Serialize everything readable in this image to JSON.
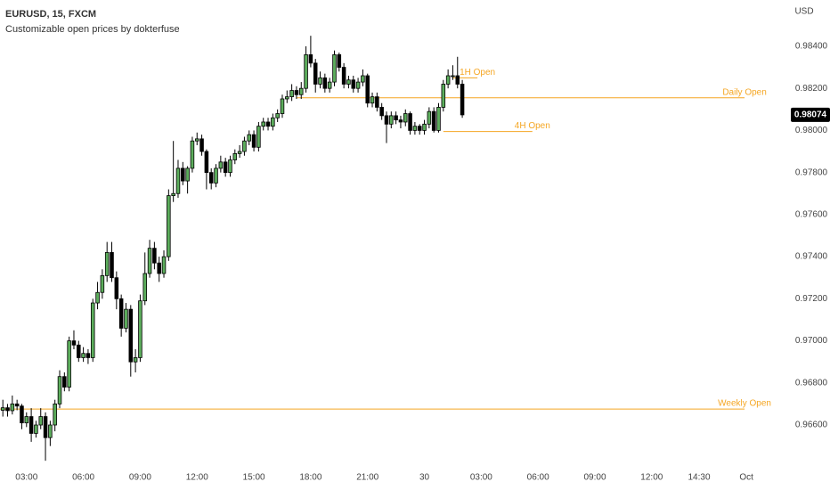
{
  "chart_data": {
    "type": "candlestick",
    "title": "EURUSD, 15, FXCM",
    "subtitle": "Customizable open prices by dokterfuse",
    "currency_label": "USD",
    "up_color": "#5cad5c",
    "down_color": "#000000",
    "wick_color": "#000000",
    "x": [
      1.75,
      2,
      2.25,
      2.5,
      2.75,
      3,
      3.25,
      3.5,
      3.75,
      4,
      4.25,
      4.5,
      4.75,
      5,
      5.25,
      5.5,
      5.75,
      6,
      6.25,
      6.5,
      6.75,
      7,
      7.25,
      7.5,
      7.75,
      8,
      8.25,
      8.5,
      8.75,
      9,
      9.25,
      9.5,
      9.75,
      10,
      10.25,
      10.5,
      10.75,
      11,
      11.25,
      11.5,
      11.75,
      12,
      12.25,
      12.5,
      12.75,
      13,
      13.25,
      13.5,
      13.75,
      14,
      14.25,
      14.5,
      14.75,
      15,
      15.25,
      15.5,
      15.75,
      16,
      16.25,
      16.5,
      16.75,
      17,
      17.25,
      17.5,
      17.75,
      18,
      18.25,
      18.5,
      18.75,
      19,
      19.25,
      19.5,
      19.75,
      20,
      20.25,
      20.5,
      20.75,
      21,
      21.25,
      21.5,
      21.75,
      22,
      22.25,
      22.5,
      22.75,
      23,
      23.25,
      23.5,
      23.75,
      24,
      24.25,
      24.5,
      24.75,
      25,
      25.25,
      25.5,
      25.75,
      26
    ],
    "open": [
      0.9667,
      0.96682,
      0.96668,
      0.967,
      0.9669,
      0.9661,
      0.9664,
      0.9656,
      0.966,
      0.9664,
      0.9654,
      0.966,
      0.967,
      0.9683,
      0.9678,
      0.97,
      0.9698,
      0.9692,
      0.9694,
      0.9692,
      0.9718,
      0.9723,
      0.9731,
      0.9742,
      0.973,
      0.972,
      0.9706,
      0.9715,
      0.969,
      0.9692,
      0.9719,
      0.9732,
      0.9744,
      0.9737,
      0.9732,
      0.974,
      0.9769,
      0.977,
      0.9782,
      0.9776,
      0.9782,
      0.9795,
      0.9796,
      0.979,
      0.978,
      0.9775,
      0.9782,
      0.9785,
      0.978,
      0.9786,
      0.9789,
      0.979,
      0.9795,
      0.9798,
      0.9792,
      0.9802,
      0.9804,
      0.9802,
      0.9806,
      0.9808,
      0.9815,
      0.9816,
      0.9819,
      0.9817,
      0.982,
      0.9836,
      0.9832,
      0.9822,
      0.9825,
      0.982,
      0.9823,
      0.9836,
      0.983,
      0.9822,
      0.9824,
      0.982,
      0.9823,
      0.9826,
      0.9813,
      0.9816,
      0.9811,
      0.9807,
      0.9803,
      0.9807,
      0.9805,
      0.9804,
      0.9808,
      0.98,
      0.9802,
      0.98,
      0.9803,
      0.9809,
      0.98,
      0.9811,
      0.9822,
      0.9826,
      0.9826,
      0.9822
    ],
    "high": [
      0.9672,
      0.967,
      0.9674,
      0.9672,
      0.967,
      0.9666,
      0.9668,
      0.9662,
      0.9668,
      0.9666,
      0.9662,
      0.9672,
      0.9686,
      0.9685,
      0.9702,
      0.9705,
      0.97,
      0.9697,
      0.9696,
      0.972,
      0.9728,
      0.9734,
      0.9747,
      0.9747,
      0.9733,
      0.9722,
      0.9718,
      0.9717,
      0.9696,
      0.9722,
      0.9742,
      0.9748,
      0.9747,
      0.974,
      0.9743,
      0.9772,
      0.9795,
      0.9786,
      0.9785,
      0.9783,
      0.9797,
      0.9799,
      0.9798,
      0.9791,
      0.9782,
      0.9784,
      0.9788,
      0.9787,
      0.9788,
      0.9791,
      0.9793,
      0.9797,
      0.98,
      0.98,
      0.9804,
      0.9806,
      0.9806,
      0.9808,
      0.981,
      0.9817,
      0.9819,
      0.9822,
      0.9821,
      0.9823,
      0.984,
      0.9845,
      0.9834,
      0.9828,
      0.9827,
      0.9825,
      0.9838,
      0.9837,
      0.9832,
      0.9826,
      0.9826,
      0.9825,
      0.9829,
      0.9827,
      0.9818,
      0.9818,
      0.9813,
      0.9809,
      0.9809,
      0.9809,
      0.9807,
      0.981,
      0.9809,
      0.9804,
      0.9803,
      0.9805,
      0.9811,
      0.9811,
      0.9813,
      0.9824,
      0.9829,
      0.9831,
      0.9835,
      0.9824
    ],
    "low": [
      0.9664,
      0.9664,
      0.9665,
      0.9667,
      0.9658,
      0.9659,
      0.9652,
      0.9654,
      0.9658,
      0.9643,
      0.965,
      0.9657,
      0.9668,
      0.9676,
      0.9676,
      0.9696,
      0.969,
      0.969,
      0.9689,
      0.969,
      0.9715,
      0.972,
      0.9728,
      0.9728,
      0.9715,
      0.9702,
      0.9704,
      0.9683,
      0.9685,
      0.969,
      0.9717,
      0.973,
      0.9734,
      0.9728,
      0.973,
      0.9738,
      0.9766,
      0.9768,
      0.9774,
      0.977,
      0.978,
      0.9793,
      0.9788,
      0.9772,
      0.9772,
      0.9773,
      0.978,
      0.9778,
      0.9778,
      0.9784,
      0.9787,
      0.9788,
      0.9793,
      0.979,
      0.979,
      0.98,
      0.98,
      0.98,
      0.9804,
      0.9806,
      0.9813,
      0.9814,
      0.9815,
      0.9815,
      0.9818,
      0.983,
      0.9818,
      0.982,
      0.9818,
      0.9818,
      0.9821,
      0.9828,
      0.982,
      0.982,
      0.9818,
      0.9818,
      0.9821,
      0.9811,
      0.9811,
      0.9809,
      0.9805,
      0.9794,
      0.9801,
      0.9803,
      0.9801,
      0.9802,
      0.9798,
      0.9798,
      0.9798,
      0.9798,
      0.9801,
      0.9799,
      0.9799,
      0.9809,
      0.982,
      0.9824,
      0.982,
      0.9806
    ],
    "close": [
      0.96682,
      0.96668,
      0.967,
      0.9669,
      0.9661,
      0.9664,
      0.9656,
      0.966,
      0.9664,
      0.9654,
      0.966,
      0.967,
      0.9683,
      0.9678,
      0.97,
      0.9698,
      0.9692,
      0.9694,
      0.9692,
      0.9718,
      0.9723,
      0.9731,
      0.9742,
      0.973,
      0.972,
      0.9706,
      0.9715,
      0.969,
      0.9692,
      0.9719,
      0.9732,
      0.9744,
      0.9737,
      0.9732,
      0.974,
      0.9769,
      0.977,
      0.9782,
      0.9776,
      0.9782,
      0.9795,
      0.9796,
      0.979,
      0.978,
      0.9775,
      0.9782,
      0.9785,
      0.978,
      0.9786,
      0.9789,
      0.979,
      0.9795,
      0.9798,
      0.9792,
      0.9802,
      0.9804,
      0.9802,
      0.9806,
      0.9808,
      0.9815,
      0.9816,
      0.9819,
      0.9817,
      0.982,
      0.9836,
      0.9832,
      0.9822,
      0.9825,
      0.982,
      0.9823,
      0.9836,
      0.983,
      0.9822,
      0.9824,
      0.982,
      0.9823,
      0.9826,
      0.9813,
      0.9816,
      0.9811,
      0.9807,
      0.9803,
      0.9807,
      0.9805,
      0.9804,
      0.9808,
      0.98,
      0.9802,
      0.98,
      0.9803,
      0.9809,
      0.98,
      0.9811,
      0.9822,
      0.9826,
      0.9826,
      0.9822,
      0.98074
    ],
    "last_price": 0.98074,
    "levels": [
      {
        "name": "Weekly Open",
        "value": 0.96676,
        "start": 1.6,
        "end": 40.9,
        "color": "#f5a623"
      },
      {
        "name": "Daily Open",
        "value": 0.98155,
        "start": 17.25,
        "end": 40.9,
        "color": "#f5a623"
      },
      {
        "name": "4H Open",
        "value": 0.97995,
        "start": 25,
        "end": 29.7,
        "color": "#f5a623"
      },
      {
        "name": "1H Open",
        "value": 0.9825,
        "start": 25.5,
        "end": 26.8,
        "color": "#f5a623"
      }
    ],
    "xlim": [
      1.6,
      43.2
    ],
    "ylim": [
      0.96418,
      0.9862
    ],
    "xticks": [
      {
        "value": 3,
        "label": "03:00"
      },
      {
        "value": 6,
        "label": "06:00"
      },
      {
        "value": 9,
        "label": "09:00"
      },
      {
        "value": 12,
        "label": "12:00"
      },
      {
        "value": 15,
        "label": "15:00"
      },
      {
        "value": 18,
        "label": "18:00"
      },
      {
        "value": 21,
        "label": "21:00"
      },
      {
        "value": 24,
        "label": "30"
      },
      {
        "value": 27,
        "label": "03:00"
      },
      {
        "value": 30,
        "label": "06:00"
      },
      {
        "value": 33,
        "label": "09:00"
      },
      {
        "value": 36,
        "label": "12:00"
      },
      {
        "value": 38.5,
        "label": "14:30"
      },
      {
        "value": 41,
        "label": "Oct"
      }
    ],
    "yticks": [
      {
        "value": 0.966,
        "label": "0.96600"
      },
      {
        "value": 0.968,
        "label": "0.96800"
      },
      {
        "value": 0.97,
        "label": "0.97000"
      },
      {
        "value": 0.972,
        "label": "0.97200"
      },
      {
        "value": 0.974,
        "label": "0.97400"
      },
      {
        "value": 0.976,
        "label": "0.97600"
      },
      {
        "value": 0.978,
        "label": "0.97800"
      },
      {
        "value": 0.98,
        "label": "0.98000"
      },
      {
        "value": 0.982,
        "label": "0.98200"
      },
      {
        "value": 0.984,
        "label": "0.98400"
      }
    ]
  }
}
